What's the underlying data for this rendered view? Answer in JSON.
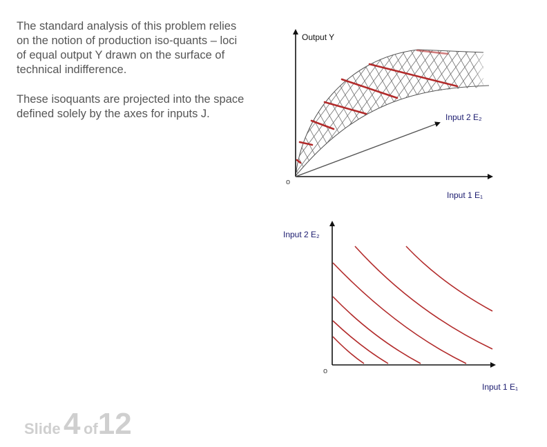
{
  "body_text": {
    "paragraph_1": "The standard analysis of this problem relies on the notion of production iso-quants – loci of equal output Y drawn on the surface of technical indifference.",
    "paragraph_2": "These isoquants are projected into the space defined solely by the axes for inputs J."
  },
  "top_diagram": {
    "y_axis_label": "Output Y",
    "input2_label": "Input 2 E₂",
    "input1_label": "Input 1 E₁",
    "origin_label": "o"
  },
  "bottom_diagram": {
    "y_axis_label": "Input 2 E₂",
    "x_axis_label": "Input 1 E₁",
    "origin_label": "o",
    "isoquant_count": 6
  },
  "colors": {
    "isoquant": "#b22a2a",
    "input_label": "#1a1a6e",
    "axis": "#111111",
    "surface_hatch": "#6e6e6e"
  },
  "footer": {
    "slide_word": "Slide",
    "slide_number": "4",
    "of_word": "of",
    "total_slides": "12"
  }
}
